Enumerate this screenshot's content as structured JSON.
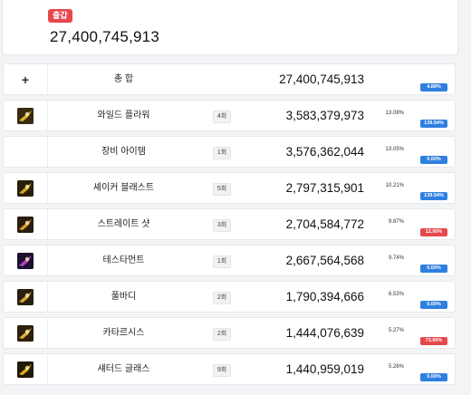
{
  "summary": {
    "badge": "출갑",
    "total": "27,400,745,913"
  },
  "rows": [
    {
      "icon": "plus",
      "name": "총 합",
      "count": "",
      "value": "27,400,745,913",
      "pct": "",
      "pill": "4.88%",
      "pill_color": "#2f7fe0"
    },
    {
      "icon": "wild-flower-skill-icon",
      "name": "와일드 플라워",
      "count": "4회",
      "value": "3,583,379,973",
      "pct": "13.08%",
      "pill": "139.54%",
      "pill_color": "#2f7fe0"
    },
    {
      "icon": "",
      "name": "장비 아이템",
      "count": "1회",
      "value": "3,576,362,044",
      "pct": "13.05%",
      "pill": "0.00%",
      "pill_color": "#2f7fe0"
    },
    {
      "icon": "shaker-blast-skill-icon",
      "name": "셰이커 블래스트",
      "count": "5회",
      "value": "2,797,315,901",
      "pct": "10.21%",
      "pill": "139.54%",
      "pill_color": "#2f7fe0"
    },
    {
      "icon": "straight-shot-skill-icon",
      "name": "스트레이트 샷",
      "count": "3회",
      "value": "2,704,584,772",
      "pct": "9.87%",
      "pill": "12.00%",
      "pill_color": "#e5484d"
    },
    {
      "icon": "testament-skill-icon",
      "name": "테스타먼트",
      "count": "1회",
      "value": "2,667,564,568",
      "pct": "9.74%",
      "pill": "0.00%",
      "pill_color": "#2f7fe0"
    },
    {
      "icon": "full-body-skill-icon",
      "name": "풀바디",
      "count": "2회",
      "value": "1,790,394,666",
      "pct": "6.53%",
      "pill": "0.00%",
      "pill_color": "#2f7fe0"
    },
    {
      "icon": "catharsis-skill-icon",
      "name": "카타르시스",
      "count": "2회",
      "value": "1,444,076,639",
      "pct": "5.27%",
      "pill": "73.60%",
      "pill_color": "#e5484d"
    },
    {
      "icon": "shattered-glass-skill-icon",
      "name": "섀터드 글래스",
      "count": "9회",
      "value": "1,440,959,019",
      "pct": "5.26%",
      "pill": "0.00%",
      "pill_color": "#2f7fe0"
    }
  ]
}
